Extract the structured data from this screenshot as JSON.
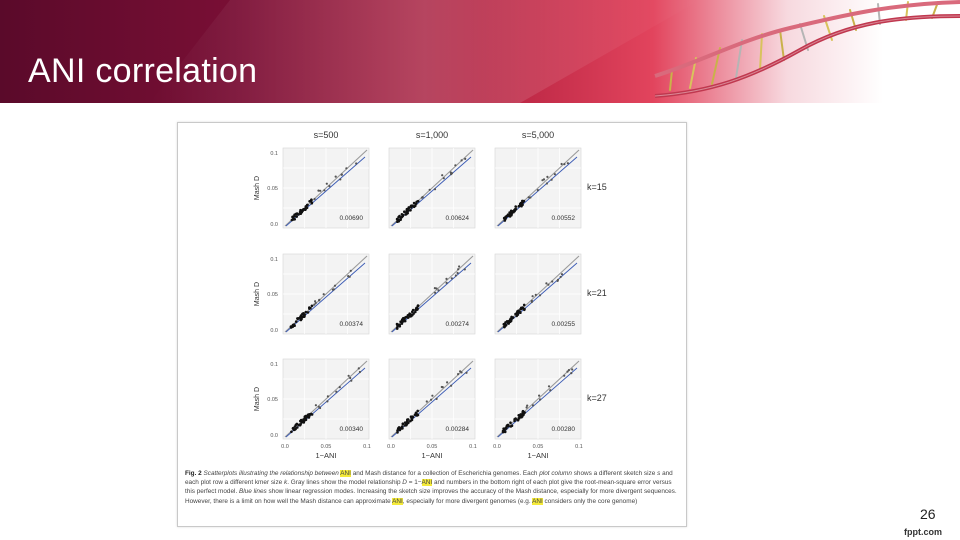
{
  "slide": {
    "title": "ANI correlation",
    "page_number": "26",
    "watermark": "fppt.com"
  },
  "figure": {
    "column_headers": [
      "s=500",
      "s=1,000",
      "s=5,000"
    ],
    "row_labels": [
      "k=15",
      "k=21",
      "k=27"
    ],
    "y_axis_label": "Mash D",
    "x_axis_label": "1−ANI",
    "y_ticks": [
      "0.1",
      "0.05",
      "0.0"
    ],
    "x_ticks": [
      "0.0",
      "0.05",
      "0.1"
    ],
    "rmse": [
      [
        "0.00690",
        "0.00624",
        "0.00552"
      ],
      [
        "0.00374",
        "0.00274",
        "0.00255"
      ],
      [
        "0.00340",
        "0.00284",
        "0.00280"
      ]
    ],
    "caption": {
      "lead": "Fig. 2",
      "s1": "Scatterplots illustrating the relationship between",
      "s2": "and Mash distance for a collection of Escherichia genomes. Each",
      "s3": "plot column",
      "s4": "shows a different sketch size",
      "s5": "s",
      "s6": "and each plot row a different kmer size",
      "s7": "k",
      "s8": ". Gray lines show the model relationship",
      "s9": "D",
      "s10": "= 1−",
      "s11": "and numbers in the bottom right",
      "s12": "of each plot give the root-mean-square error versus this perfect model.",
      "s13": "Blue lines",
      "s14": "show linear regression modes. Increasing the sketch size improves the accuracy of the Mash distance, especially for more divergent sequences. However, there is a limit on how well the Mash distance can approximate",
      "s15": ", especially for more divergent genomes (e.g.",
      "s16": "considers only the core genome)",
      "highlight": "ANI"
    }
  },
  "colors": {
    "model_line": "#9a9a9a",
    "regression_line": "#3b5bb5",
    "points": "#111111",
    "highlight": "#f4ea3a"
  }
}
